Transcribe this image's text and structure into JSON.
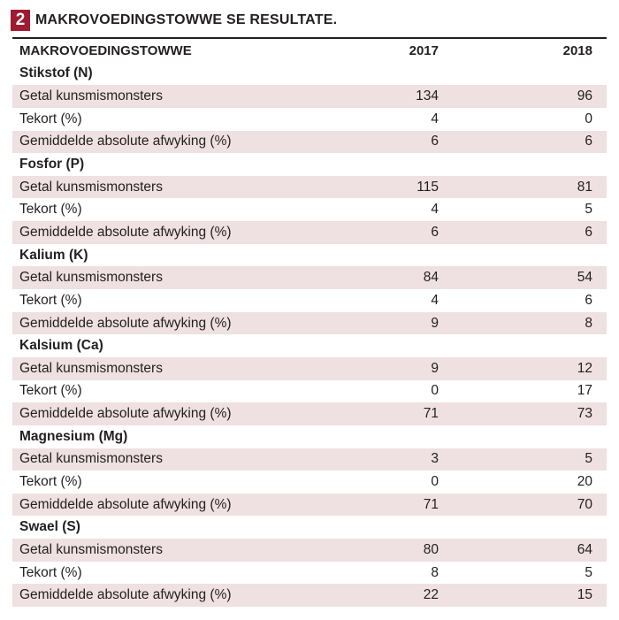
{
  "header": {
    "number": "2",
    "title": "MAKROVOEDINGSTOWWE SE RESULTATE."
  },
  "table": {
    "columns": [
      "MAKROVOEDINGSTOWWE",
      "2017",
      "2018"
    ],
    "sections": [
      {
        "name": "Stikstof (N)",
        "rows": [
          {
            "label": "Getal kunsmismonsters",
            "v2017": "134",
            "v2018": "96"
          },
          {
            "label": "Tekort (%)",
            "v2017": "4",
            "v2018": "0"
          },
          {
            "label": "Gemiddelde absolute afwyking (%)",
            "v2017": "6",
            "v2018": "6"
          }
        ]
      },
      {
        "name": "Fosfor (P)",
        "rows": [
          {
            "label": "Getal kunsmismonsters",
            "v2017": "115",
            "v2018": "81"
          },
          {
            "label": "Tekort (%)",
            "v2017": "4",
            "v2018": "5"
          },
          {
            "label": "Gemiddelde absolute afwyking (%)",
            "v2017": "6",
            "v2018": "6"
          }
        ]
      },
      {
        "name": "Kalium (K)",
        "rows": [
          {
            "label": "Getal kunsmismonsters",
            "v2017": "84",
            "v2018": "54"
          },
          {
            "label": "Tekort (%)",
            "v2017": "4",
            "v2018": "6"
          },
          {
            "label": "Gemiddelde absolute afwyking (%)",
            "v2017": "9",
            "v2018": "8"
          }
        ]
      },
      {
        "name": "Kalsium (Ca)",
        "rows": [
          {
            "label": "Getal kunsmismonsters",
            "v2017": "9",
            "v2018": "12"
          },
          {
            "label": "Tekort (%)",
            "v2017": "0",
            "v2018": "17"
          },
          {
            "label": "Gemiddelde absolute afwyking (%)",
            "v2017": "71",
            "v2018": "73"
          }
        ]
      },
      {
        "name": "Magnesium (Mg)",
        "rows": [
          {
            "label": "Getal kunsmismonsters",
            "v2017": "3",
            "v2018": "5"
          },
          {
            "label": "Tekort (%)",
            "v2017": "0",
            "v2018": "20"
          },
          {
            "label": "Gemiddelde absolute afwyking (%)",
            "v2017": "71",
            "v2018": "70"
          }
        ]
      },
      {
        "name": "Swael (S)",
        "rows": [
          {
            "label": "Getal kunsmismonsters",
            "v2017": "80",
            "v2018": "64"
          },
          {
            "label": "Tekort (%)",
            "v2017": "8",
            "v2018": "5"
          },
          {
            "label": "Gemiddelde absolute afwyking (%)",
            "v2017": "22",
            "v2018": "15"
          }
        ]
      }
    ]
  },
  "colors": {
    "accent": "#9e1b32",
    "row_shade": "#efe0e1",
    "text": "#231f20"
  }
}
